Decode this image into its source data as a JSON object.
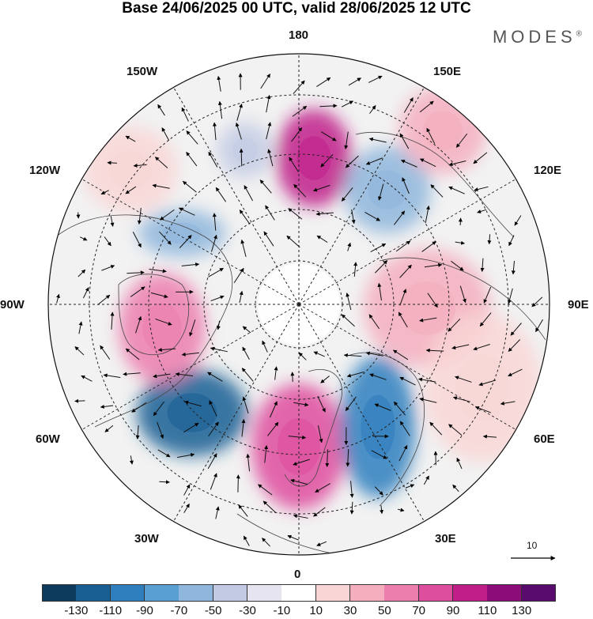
{
  "title": "Base 24/06/2025 00 UTC, valid 28/06/2025 12 UTC",
  "brand": "MODES",
  "brand_mark": "®",
  "lon_labels": {
    "top": "180",
    "bottom": "0",
    "left": "90W",
    "right": "90E",
    "upper_left_1": "150W",
    "upper_left_2": "120W",
    "upper_right_1": "150E",
    "upper_right_2": "120E",
    "lower_left_1": "60W",
    "lower_left_2": "30W",
    "lower_right_1": "60E",
    "lower_right_2": "30E"
  },
  "reference_vector": {
    "label": "10"
  },
  "colorbar": {
    "labels": [
      "-130",
      "-110",
      "-90",
      "-70",
      "-50",
      "-30",
      "-10",
      "10",
      "30",
      "50",
      "70",
      "90",
      "110",
      "130"
    ],
    "colors": [
      "#0d3b5e",
      "#1a5f94",
      "#2f7fbe",
      "#5a9fd1",
      "#8fb6dc",
      "#c3cbe4",
      "#e6e4f0",
      "#ffffff",
      "#f9d6d6",
      "#f4aebe",
      "#ec7eae",
      "#de4e9e",
      "#c01f8a",
      "#8c0c7a",
      "#5a0b6e"
    ]
  },
  "anomalies": [
    {
      "name": "pos-180-north",
      "value": 110,
      "color": "#c01f8a"
    },
    {
      "name": "neg-atlantic",
      "value": -110,
      "color": "#1a5f94"
    },
    {
      "name": "pos-europe",
      "value": 90,
      "color": "#de4e9e"
    },
    {
      "name": "neg-russia",
      "value": -90,
      "color": "#2f7fbe"
    },
    {
      "name": "pos-hudson",
      "value": 70,
      "color": "#ec7eae"
    },
    {
      "name": "pos-siberia",
      "value": 50,
      "color": "#f4aebe"
    },
    {
      "name": "neg-east-siberia",
      "value": -50,
      "color": "#8fb6dc"
    },
    {
      "name": "pos-far-east",
      "value": 50,
      "color": "#f4aebe"
    },
    {
      "name": "neg-pacific",
      "value": -30,
      "color": "#c3cbe4"
    },
    {
      "name": "pos-pacific-west",
      "value": 30,
      "color": "#f9d6d6"
    },
    {
      "name": "pos-asia",
      "value": 30,
      "color": "#f9d6d6"
    },
    {
      "name": "neg-alaska",
      "value": -50,
      "color": "#8fb6dc"
    }
  ]
}
